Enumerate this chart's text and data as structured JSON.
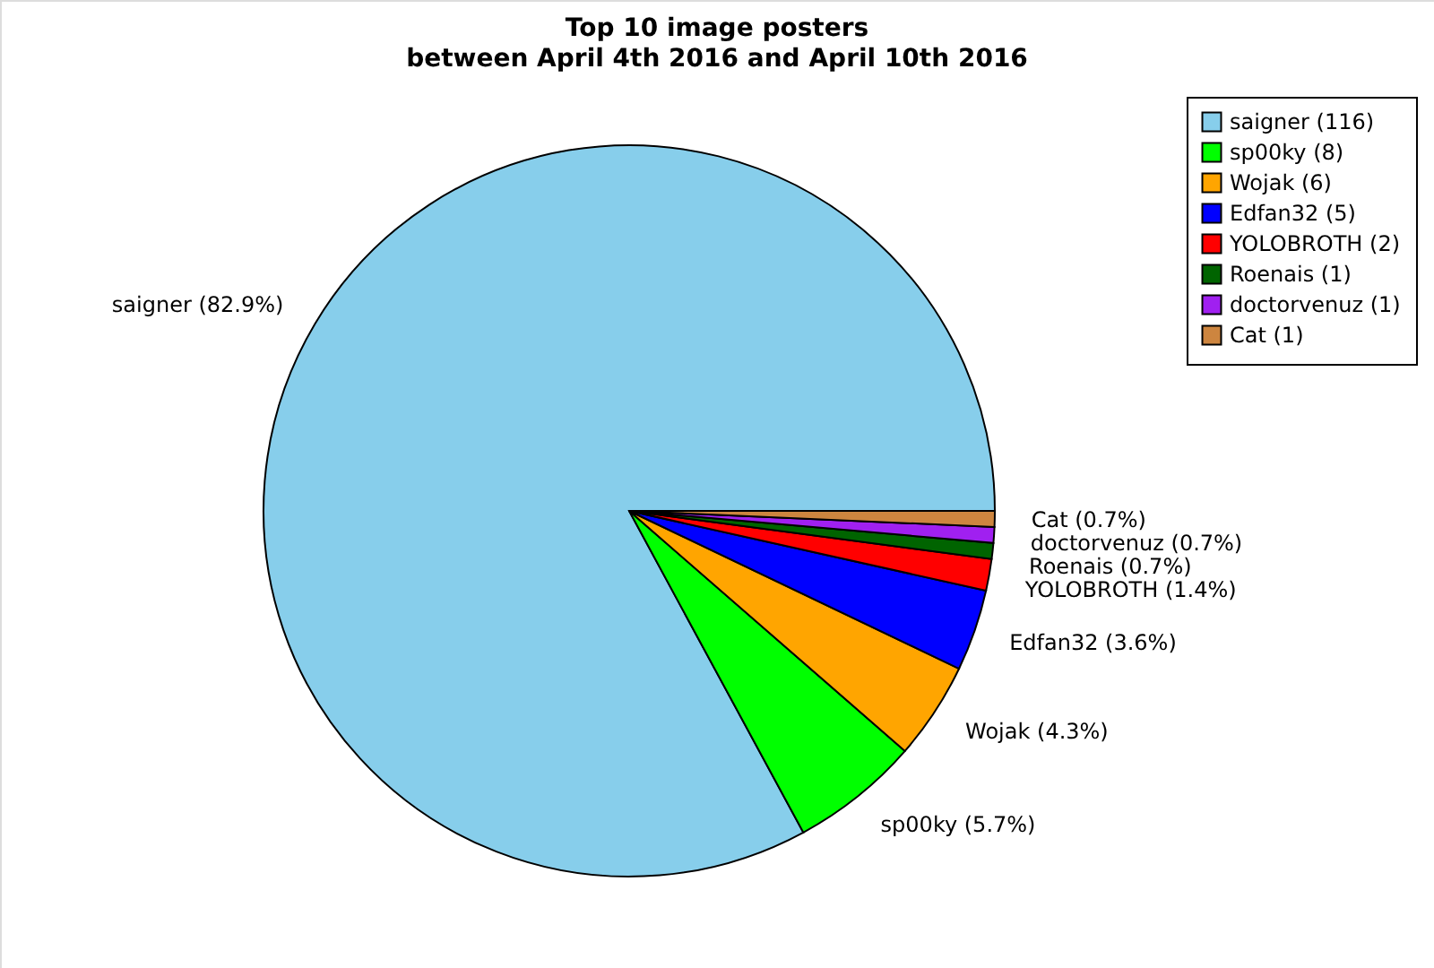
{
  "chart_data": {
    "type": "pie",
    "title": "Top 10 image posters\nbetween April 4th 2016 and April 10th 2016",
    "categories": [
      "saigner (116)",
      "sp00ky (8)",
      "Wojak (6)",
      "Edfan32 (5)",
      "YOLOBROTH (2)",
      "Roenais (1)",
      "doctorvenuz (1)",
      "Cat (1)"
    ],
    "values": [
      82.9,
      5.7,
      4.3,
      3.6,
      1.4,
      0.7,
      0.7,
      0.7
    ],
    "colors": [
      "#87ceeb",
      "#00ff00",
      "#ffa500",
      "#0000ff",
      "#ff0000",
      "#006400",
      "#a020f0",
      "#cd853f"
    ],
    "value_labels": [
      "saigner (82.9%)",
      "sp00ky (5.7%)",
      "Wojak (4.3%)",
      "Edfan32 (3.6%)",
      "YOLOBROTH (1.4%)",
      "Roenais (0.7%)",
      "doctorvenuz (0.7%)",
      "Cat (0.7%)"
    ],
    "legend": "top right"
  }
}
